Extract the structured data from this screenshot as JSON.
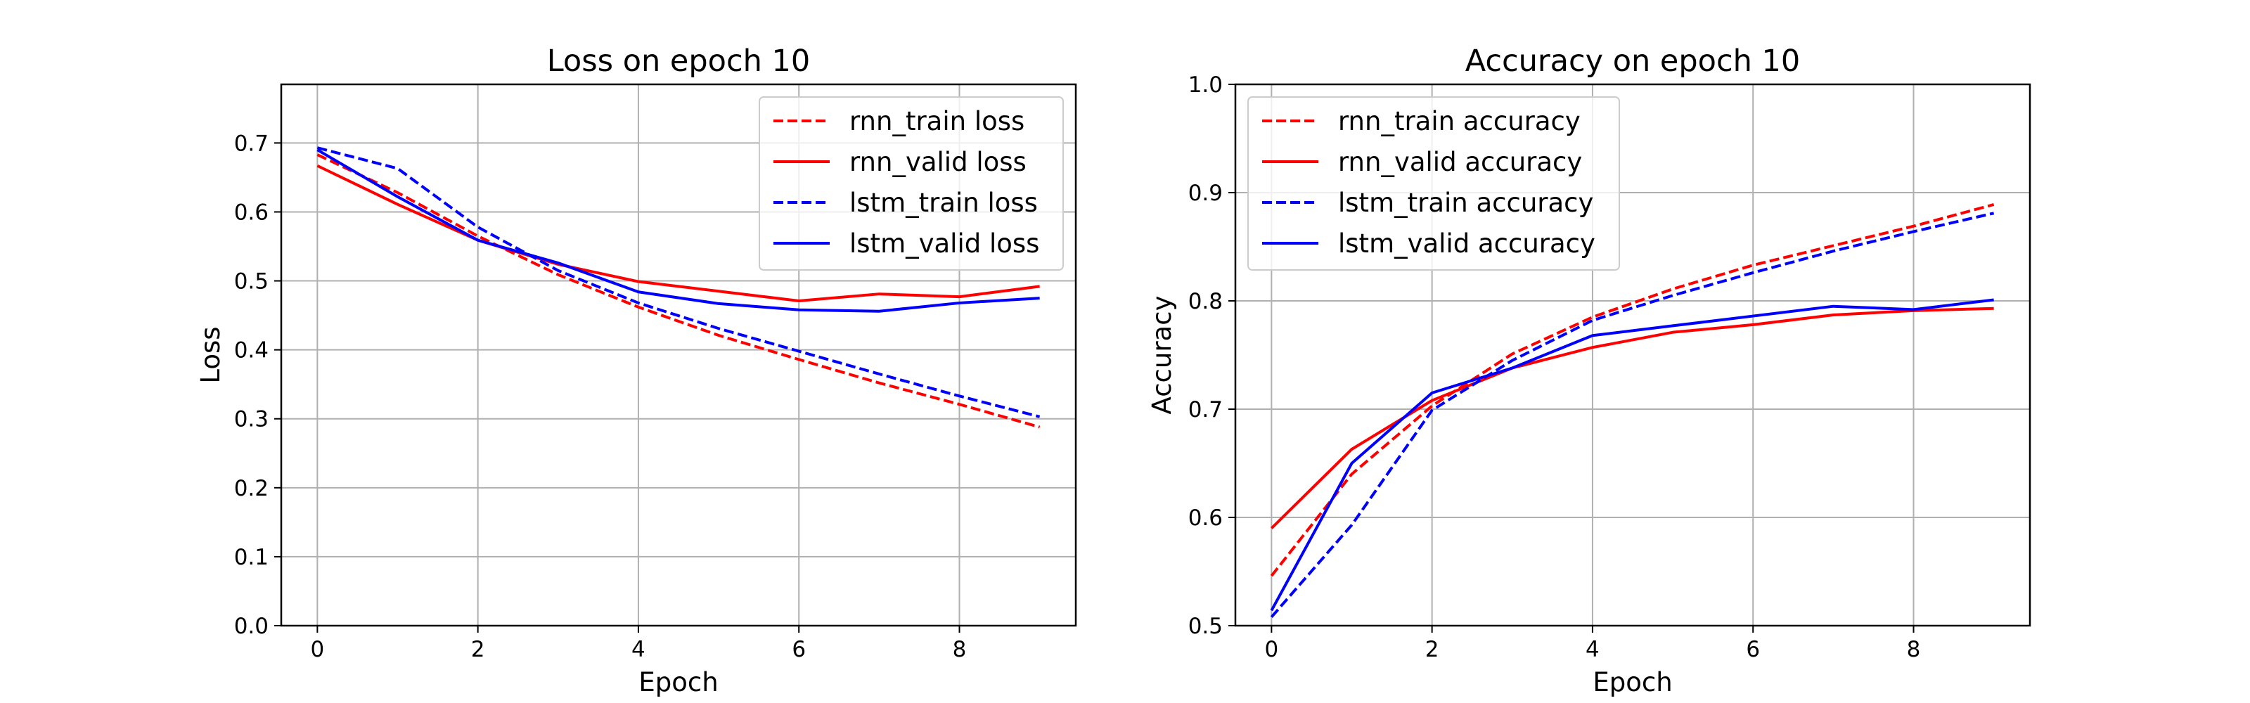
{
  "chart_data": [
    {
      "type": "line",
      "title": "Loss on epoch 10",
      "xlabel": "Epoch",
      "ylabel": "Loss",
      "xlim": [
        -0.45,
        9.45
      ],
      "ylim": [
        0.0,
        0.785
      ],
      "xticks": [
        0,
        2,
        4,
        6,
        8
      ],
      "yticks": [
        0.0,
        0.1,
        0.2,
        0.3,
        0.4,
        0.5,
        0.6,
        0.7
      ],
      "xtick_labels": [
        "0",
        "2",
        "4",
        "6",
        "8"
      ],
      "ytick_labels": [
        "0.0",
        "0.1",
        "0.2",
        "0.3",
        "0.4",
        "0.5",
        "0.6",
        "0.7"
      ],
      "grid": true,
      "legend_position": "upper right",
      "x": [
        0,
        1,
        2,
        3,
        4,
        5,
        6,
        7,
        8,
        9
      ],
      "series": [
        {
          "name": "rnn_train loss",
          "color": "#ff0000",
          "dashed": true,
          "values": [
            0.683,
            0.628,
            0.565,
            0.509,
            0.462,
            0.421,
            0.386,
            0.352,
            0.321,
            0.288
          ]
        },
        {
          "name": "rnn_valid loss",
          "color": "#ff0000",
          "dashed": false,
          "values": [
            0.667,
            0.611,
            0.559,
            0.524,
            0.499,
            0.485,
            0.471,
            0.481,
            0.477,
            0.492
          ]
        },
        {
          "name": "lstm_train loss",
          "color": "#0000ff",
          "dashed": true,
          "values": [
            0.693,
            0.663,
            0.578,
            0.515,
            0.468,
            0.431,
            0.398,
            0.365,
            0.333,
            0.303
          ]
        },
        {
          "name": "lstm_valid loss",
          "color": "#0000ff",
          "dashed": false,
          "values": [
            0.69,
            0.622,
            0.559,
            0.526,
            0.484,
            0.467,
            0.458,
            0.456,
            0.468,
            0.475
          ]
        }
      ]
    },
    {
      "type": "line",
      "title": "Accuracy on epoch 10",
      "xlabel": "Epoch",
      "ylabel": "Accuracy",
      "xlim": [
        -0.45,
        9.45
      ],
      "ylim": [
        0.5,
        1.0
      ],
      "xticks": [
        0,
        2,
        4,
        6,
        8
      ],
      "yticks": [
        0.5,
        0.6,
        0.7,
        0.8,
        0.9,
        1.0
      ],
      "xtick_labels": [
        "0",
        "2",
        "4",
        "6",
        "8"
      ],
      "ytick_labels": [
        "0.5",
        "0.6",
        "0.7",
        "0.8",
        "0.9",
        "1.0"
      ],
      "grid": true,
      "legend_position": "upper left",
      "x": [
        0,
        1,
        2,
        3,
        4,
        5,
        6,
        7,
        8,
        9
      ],
      "series": [
        {
          "name": "rnn_train accuracy",
          "color": "#ff0000",
          "dashed": true,
          "values": [
            0.546,
            0.64,
            0.703,
            0.751,
            0.785,
            0.811,
            0.833,
            0.851,
            0.869,
            0.889
          ]
        },
        {
          "name": "rnn_valid accuracy",
          "color": "#ff0000",
          "dashed": false,
          "values": [
            0.59,
            0.663,
            0.708,
            0.738,
            0.757,
            0.771,
            0.778,
            0.787,
            0.791,
            0.793
          ]
        },
        {
          "name": "lstm_train accuracy",
          "color": "#0000ff",
          "dashed": true,
          "values": [
            0.508,
            0.593,
            0.699,
            0.745,
            0.782,
            0.805,
            0.826,
            0.846,
            0.864,
            0.881
          ]
        },
        {
          "name": "lstm_valid accuracy",
          "color": "#0000ff",
          "dashed": false,
          "values": [
            0.514,
            0.65,
            0.715,
            0.738,
            0.768,
            0.777,
            0.786,
            0.795,
            0.792,
            0.801
          ]
        }
      ]
    }
  ]
}
